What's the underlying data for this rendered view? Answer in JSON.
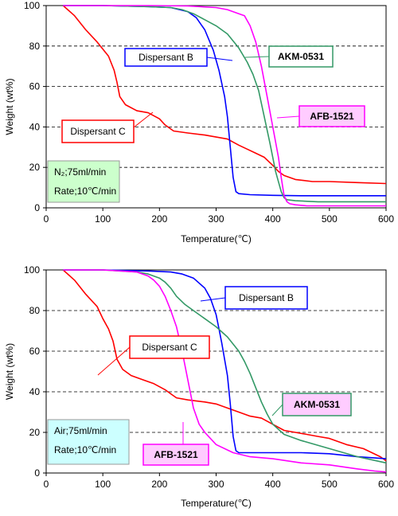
{
  "chart_data": [
    {
      "type": "line",
      "xlabel": "Temperature(℃)",
      "ylabel": "Weight (wt%)",
      "xlim": [
        0,
        600
      ],
      "ylim": [
        0,
        100
      ],
      "xticks": [
        0,
        100,
        200,
        300,
        400,
        500,
        600
      ],
      "yticks": [
        0,
        20,
        40,
        60,
        80,
        100
      ],
      "grid": "horizontal dashed",
      "conditions": [
        "N₂;75ml/min",
        "Rate;10℃/min"
      ],
      "conditions_fill": "#ccffcc",
      "series": [
        {
          "name": "Dispersant C",
          "color": "#ff0000",
          "x": [
            30,
            50,
            70,
            90,
            110,
            120,
            125,
            130,
            140,
            160,
            180,
            200,
            210,
            225,
            250,
            280,
            300,
            320,
            340,
            355,
            370,
            385,
            400,
            410,
            420,
            440,
            470,
            500,
            550,
            600
          ],
          "y": [
            100,
            95,
            88,
            82,
            75,
            68,
            62,
            55,
            51,
            48,
            47,
            44,
            41,
            38,
            37,
            36,
            35,
            34,
            31,
            29,
            27,
            25,
            21,
            18,
            16,
            14,
            13,
            13,
            12.5,
            12
          ]
        },
        {
          "name": "Dispersant B",
          "color": "#0000ff",
          "x": [
            30,
            100,
            180,
            220,
            250,
            265,
            280,
            295,
            305,
            315,
            320,
            325,
            330,
            335,
            340,
            360,
            400,
            450,
            500,
            550,
            600
          ],
          "y": [
            100,
            100,
            99.5,
            99,
            97,
            94,
            88,
            78,
            68,
            55,
            45,
            30,
            15,
            8,
            7,
            6.5,
            6.2,
            6,
            6,
            6,
            6
          ]
        },
        {
          "name": "AKM-0531",
          "color": "#339966",
          "x": [
            30,
            100,
            180,
            220,
            240,
            260,
            280,
            300,
            320,
            340,
            355,
            365,
            375,
            385,
            395,
            405,
            415,
            420,
            425,
            440,
            480,
            520,
            560,
            600
          ],
          "y": [
            100,
            100,
            99.5,
            99,
            98,
            96,
            93,
            90,
            86,
            79,
            72,
            66,
            58,
            45,
            32,
            18,
            8,
            5,
            4,
            3.5,
            3,
            3,
            3,
            3
          ]
        },
        {
          "name": "AFB-1521",
          "color": "#ff00ff",
          "x": [
            30,
            100,
            180,
            250,
            300,
            320,
            340,
            350,
            360,
            370,
            380,
            390,
            400,
            410,
            415,
            420,
            425,
            430,
            440,
            460,
            500,
            550,
            600
          ],
          "y": [
            100,
            100,
            100,
            99.8,
            99,
            98,
            96,
            95,
            90,
            82,
            70,
            55,
            40,
            25,
            15,
            6,
            3,
            2,
            1.5,
            1,
            1,
            1,
            1
          ]
        }
      ]
    },
    {
      "type": "line",
      "xlabel": "Temperature(℃)",
      "ylabel": "Weight (wt%)",
      "xlim": [
        0,
        600
      ],
      "ylim": [
        0,
        100
      ],
      "xticks": [
        0,
        100,
        200,
        300,
        400,
        500,
        600
      ],
      "yticks": [
        0,
        20,
        40,
        60,
        80,
        100
      ],
      "grid": "horizontal dashed",
      "conditions": [
        "Air;75ml/min",
        "Rate;10℃/min"
      ],
      "conditions_fill": "#ccffff",
      "series": [
        {
          "name": "Dispersant C",
          "color": "#ff0000",
          "x": [
            30,
            50,
            70,
            90,
            100,
            110,
            118,
            125,
            135,
            150,
            170,
            190,
            210,
            220,
            230,
            250,
            280,
            300,
            320,
            340,
            360,
            380,
            400,
            420,
            440,
            460,
            480,
            500,
            530,
            560,
            590,
            600
          ],
          "y": [
            100,
            95,
            88,
            82,
            76,
            71,
            65,
            56,
            51,
            48,
            46,
            44,
            41,
            39,
            37,
            36,
            35,
            34,
            32,
            30,
            28,
            27,
            24,
            21,
            20,
            19,
            18,
            17,
            14,
            12,
            8,
            6
          ]
        },
        {
          "name": "Dispersant B",
          "color": "#0000ff",
          "x": [
            30,
            100,
            180,
            220,
            240,
            260,
            280,
            290,
            300,
            305,
            310,
            320,
            325,
            330,
            335,
            340,
            400,
            450,
            500,
            550,
            600
          ],
          "y": [
            100,
            100,
            99.5,
            99,
            98,
            96,
            91,
            86,
            78,
            71,
            64,
            48,
            34,
            18,
            11,
            10,
            10,
            10,
            9.5,
            8,
            7
          ]
        },
        {
          "name": "AKM-0531",
          "color": "#339966",
          "x": [
            30,
            100,
            160,
            180,
            200,
            210,
            220,
            230,
            245,
            260,
            280,
            300,
            320,
            340,
            350,
            360,
            370,
            380,
            390,
            400,
            420,
            450,
            500,
            550,
            600
          ],
          "y": [
            100,
            100,
            99,
            98,
            96,
            94,
            91,
            87,
            83,
            80,
            76,
            72,
            67,
            60,
            55,
            49,
            42,
            35,
            29,
            24,
            19,
            16,
            12,
            8,
            5
          ]
        },
        {
          "name": "AFB-1521",
          "color": "#ff00ff",
          "x": [
            30,
            100,
            160,
            180,
            190,
            200,
            210,
            220,
            230,
            240,
            250,
            260,
            270,
            280,
            300,
            330,
            360,
            400,
            450,
            500,
            550,
            580,
            600
          ],
          "y": [
            100,
            100,
            99,
            97,
            95,
            92,
            87,
            80,
            72,
            60,
            46,
            32,
            24,
            20,
            14,
            10,
            8,
            7,
            5,
            4,
            2,
            1,
            0.5
          ]
        }
      ]
    }
  ]
}
